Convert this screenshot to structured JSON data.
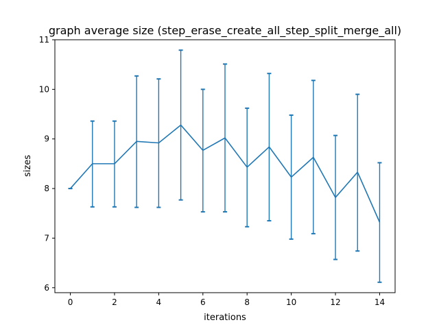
{
  "chart_data": {
    "type": "line",
    "title": "graph average size (step_erase_create_all_step_split_merge_all)",
    "xlabel": "iterations",
    "ylabel": "sizes",
    "xlim": [
      -0.7,
      14.7
    ],
    "ylim": [
      5.9,
      11.0
    ],
    "xticks": [
      0,
      2,
      4,
      6,
      8,
      10,
      12,
      14
    ],
    "yticks": [
      6,
      7,
      8,
      9,
      10,
      11
    ],
    "grid": false,
    "line_color": "#1f77b4",
    "x": [
      0,
      1,
      2,
      3,
      4,
      5,
      6,
      7,
      8,
      9,
      10,
      11,
      12,
      13,
      14
    ],
    "y": [
      8.0,
      8.5,
      8.5,
      8.95,
      8.92,
      9.28,
      8.77,
      9.02,
      8.43,
      8.84,
      8.23,
      8.63,
      7.82,
      8.33,
      7.32
    ],
    "yerr_lower": [
      8.0,
      7.63,
      7.63,
      7.62,
      7.62,
      7.77,
      7.53,
      7.53,
      7.23,
      7.35,
      6.98,
      7.09,
      6.57,
      6.74,
      6.11
    ],
    "yerr_upper": [
      8.0,
      9.36,
      9.36,
      10.27,
      10.21,
      10.79,
      10.0,
      10.51,
      9.62,
      10.32,
      9.48,
      10.18,
      9.07,
      9.9,
      8.52
    ]
  }
}
